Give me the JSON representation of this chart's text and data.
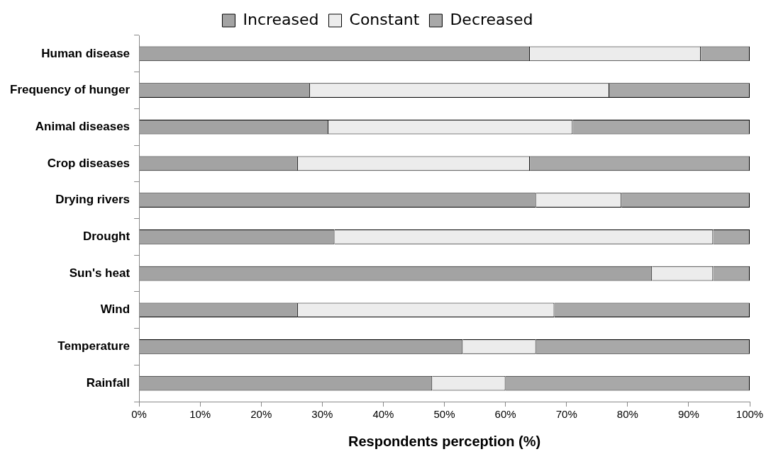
{
  "chart_data": {
    "type": "bar",
    "orientation": "horizontal",
    "stacked": true,
    "xlabel": "Respondents perception (%)",
    "categories": [
      "Human disease",
      "Frequency of hunger",
      "Animal diseases",
      "Crop diseases",
      "Drying rivers",
      "Drought",
      "Sun's heat",
      "Wind",
      "Temperature",
      "Rainfall"
    ],
    "series": [
      {
        "name": "Increased",
        "color": "#a3a3a3",
        "values": [
          64,
          28,
          31,
          26,
          65,
          32,
          84,
          26,
          53,
          48
        ]
      },
      {
        "name": "Constant",
        "color": "#ececec",
        "values": [
          28,
          49,
          40,
          38,
          14,
          62,
          10,
          42,
          12,
          12
        ]
      },
      {
        "name": "Decreased",
        "color": "#a8a8a8",
        "values": [
          8,
          23,
          29,
          36,
          21,
          6,
          6,
          32,
          35,
          40
        ]
      }
    ],
    "xlim": [
      0,
      100
    ],
    "xticks": [
      {
        "value": 0,
        "label": "0%"
      },
      {
        "value": 10,
        "label": "10%"
      },
      {
        "value": 20,
        "label": "20%"
      },
      {
        "value": 30,
        "label": "30%"
      },
      {
        "value": 40,
        "label": "40%"
      },
      {
        "value": 50,
        "label": "50%"
      },
      {
        "value": 60,
        "label": "60%"
      },
      {
        "value": 70,
        "label": "70%"
      },
      {
        "value": 80,
        "label": "80%"
      },
      {
        "value": 90,
        "label": "90%"
      },
      {
        "value": 100,
        "label": "100%"
      }
    ],
    "grid": false,
    "legend": "top"
  }
}
